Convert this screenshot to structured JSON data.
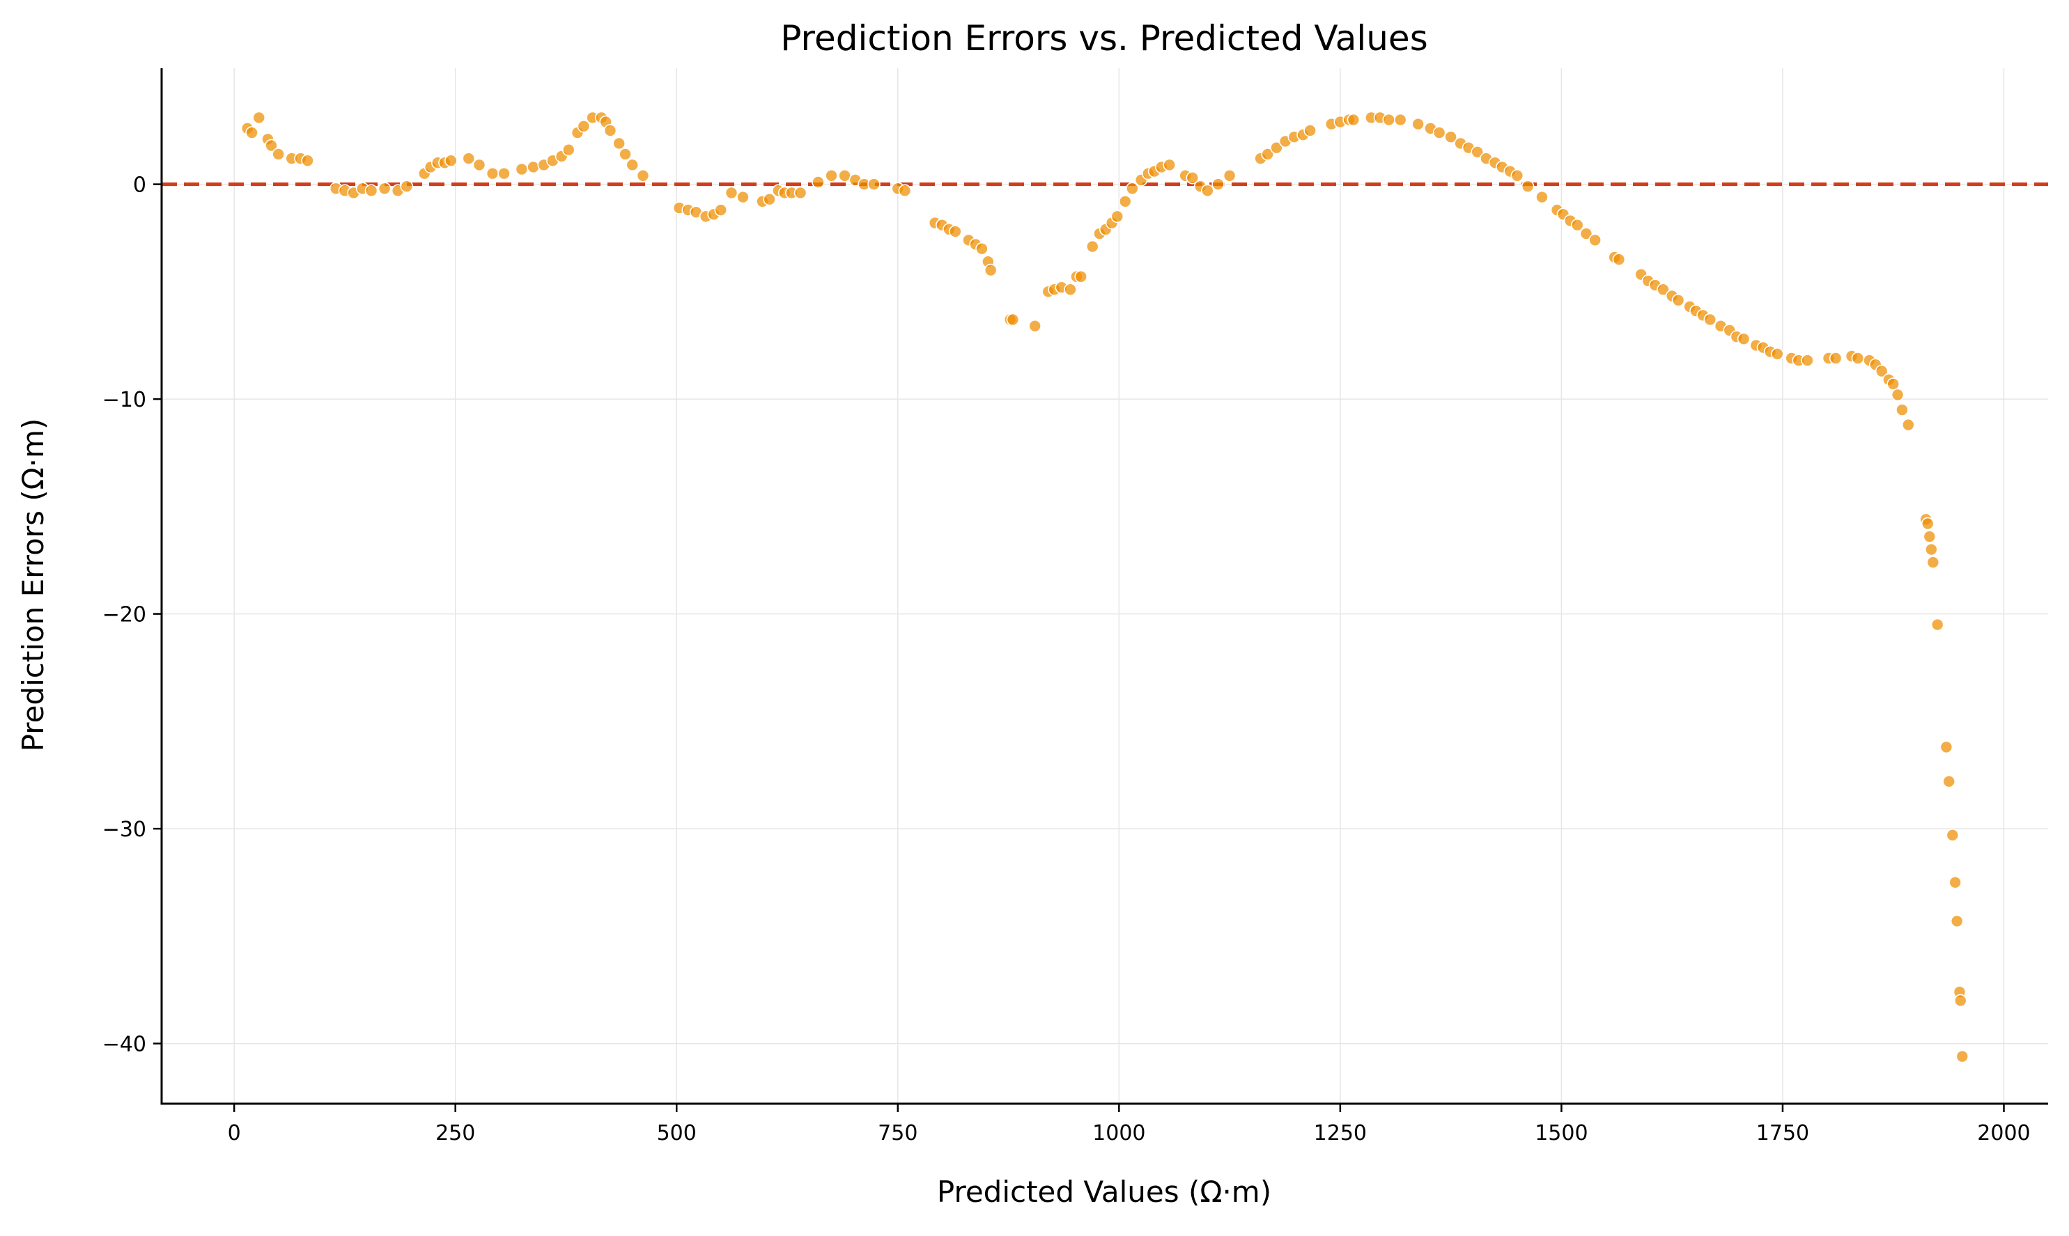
{
  "chart_data": {
    "type": "scatter",
    "title": "Prediction Errors vs. Predicted Values",
    "xlabel": "Predicted Values (Ω·m)",
    "ylabel": "Prediction Errors (Ω·m)",
    "xlim": [
      -82,
      2050
    ],
    "ylim": [
      -42.8,
      5.4
    ],
    "xticks": [
      0,
      250,
      500,
      750,
      1000,
      1250,
      1500,
      1750,
      2000
    ],
    "yticks": [
      0,
      -10,
      -20,
      -30,
      -40
    ],
    "xtick_labels": [
      "0",
      "250",
      "500",
      "750",
      "1000",
      "1250",
      "1500",
      "1750",
      "2000"
    ],
    "ytick_labels": [
      "0",
      "−10",
      "−20",
      "−30",
      "−40"
    ],
    "grid": true,
    "reference_line": {
      "y": 0,
      "style": "dashed",
      "color": "#d13d1a"
    },
    "marker_color": "#ef8e00",
    "series": [
      {
        "points": [
          [
            15,
            2.6
          ],
          [
            20,
            2.4
          ],
          [
            28,
            3.1
          ],
          [
            38,
            2.1
          ],
          [
            42,
            1.8
          ],
          [
            50,
            1.4
          ],
          [
            65,
            1.2
          ],
          [
            75,
            1.2
          ],
          [
            83,
            1.1
          ],
          [
            115,
            -0.2
          ],
          [
            125,
            -0.3
          ],
          [
            135,
            -0.4
          ],
          [
            145,
            -0.2
          ],
          [
            155,
            -0.3
          ],
          [
            170,
            -0.2
          ],
          [
            185,
            -0.3
          ],
          [
            195,
            -0.1
          ],
          [
            215,
            0.5
          ],
          [
            222,
            0.8
          ],
          [
            230,
            1.0
          ],
          [
            238,
            1.0
          ],
          [
            245,
            1.1
          ],
          [
            265,
            1.2
          ],
          [
            277,
            0.9
          ],
          [
            292,
            0.5
          ],
          [
            305,
            0.5
          ],
          [
            325,
            0.7
          ],
          [
            338,
            0.8
          ],
          [
            350,
            0.9
          ],
          [
            360,
            1.1
          ],
          [
            370,
            1.3
          ],
          [
            378,
            1.6
          ],
          [
            388,
            2.4
          ],
          [
            395,
            2.7
          ],
          [
            405,
            3.1
          ],
          [
            415,
            3.1
          ],
          [
            420,
            2.9
          ],
          [
            425,
            2.5
          ],
          [
            435,
            1.9
          ],
          [
            442,
            1.4
          ],
          [
            450,
            0.9
          ],
          [
            462,
            0.4
          ],
          [
            503,
            -1.1
          ],
          [
            513,
            -1.2
          ],
          [
            522,
            -1.3
          ],
          [
            533,
            -1.5
          ],
          [
            542,
            -1.4
          ],
          [
            550,
            -1.2
          ],
          [
            562,
            -0.4
          ],
          [
            575,
            -0.6
          ],
          [
            597,
            -0.8
          ],
          [
            605,
            -0.7
          ],
          [
            615,
            -0.3
          ],
          [
            622,
            -0.4
          ],
          [
            630,
            -0.4
          ],
          [
            640,
            -0.4
          ],
          [
            660,
            0.1
          ],
          [
            675,
            0.4
          ],
          [
            690,
            0.4
          ],
          [
            702,
            0.2
          ],
          [
            712,
            0.0
          ],
          [
            723,
            0.0
          ],
          [
            750,
            -0.2
          ],
          [
            758,
            -0.3
          ],
          [
            792,
            -1.8
          ],
          [
            800,
            -1.9
          ],
          [
            808,
            -2.1
          ],
          [
            815,
            -2.2
          ],
          [
            830,
            -2.6
          ],
          [
            838,
            -2.8
          ],
          [
            845,
            -3.0
          ],
          [
            852,
            -3.6
          ],
          [
            855,
            -4.0
          ],
          [
            877,
            -6.3
          ],
          [
            880,
            -6.3
          ],
          [
            905,
            -6.6
          ],
          [
            920,
            -5.0
          ],
          [
            927,
            -4.9
          ],
          [
            935,
            -4.8
          ],
          [
            945,
            -4.9
          ],
          [
            952,
            -4.3
          ],
          [
            957,
            -4.3
          ],
          [
            970,
            -2.9
          ],
          [
            978,
            -2.3
          ],
          [
            985,
            -2.1
          ],
          [
            992,
            -1.8
          ],
          [
            998,
            -1.5
          ],
          [
            1007,
            -0.8
          ],
          [
            1015,
            -0.2
          ],
          [
            1025,
            0.2
          ],
          [
            1033,
            0.5
          ],
          [
            1040,
            0.6
          ],
          [
            1048,
            0.8
          ],
          [
            1057,
            0.9
          ],
          [
            1075,
            0.4
          ],
          [
            1083,
            0.3
          ],
          [
            1092,
            -0.1
          ],
          [
            1100,
            -0.3
          ],
          [
            1112,
            0.0
          ],
          [
            1125,
            0.4
          ],
          [
            1160,
            1.2
          ],
          [
            1168,
            1.4
          ],
          [
            1178,
            1.7
          ],
          [
            1188,
            2.0
          ],
          [
            1198,
            2.2
          ],
          [
            1208,
            2.3
          ],
          [
            1216,
            2.5
          ],
          [
            1240,
            2.8
          ],
          [
            1250,
            2.9
          ],
          [
            1260,
            3.0
          ],
          [
            1265,
            3.0
          ],
          [
            1285,
            3.1
          ],
          [
            1295,
            3.1
          ],
          [
            1305,
            3.0
          ],
          [
            1318,
            3.0
          ],
          [
            1338,
            2.8
          ],
          [
            1352,
            2.6
          ],
          [
            1362,
            2.4
          ],
          [
            1375,
            2.2
          ],
          [
            1386,
            1.9
          ],
          [
            1395,
            1.7
          ],
          [
            1405,
            1.5
          ],
          [
            1415,
            1.2
          ],
          [
            1425,
            1.0
          ],
          [
            1433,
            0.8
          ],
          [
            1442,
            0.6
          ],
          [
            1450,
            0.4
          ],
          [
            1462,
            -0.1
          ],
          [
            1478,
            -0.6
          ],
          [
            1495,
            -1.2
          ],
          [
            1502,
            -1.4
          ],
          [
            1510,
            -1.7
          ],
          [
            1518,
            -1.9
          ],
          [
            1528,
            -2.3
          ],
          [
            1538,
            -2.6
          ],
          [
            1560,
            -3.4
          ],
          [
            1565,
            -3.5
          ],
          [
            1590,
            -4.2
          ],
          [
            1598,
            -4.5
          ],
          [
            1606,
            -4.7
          ],
          [
            1615,
            -4.9
          ],
          [
            1625,
            -5.2
          ],
          [
            1632,
            -5.4
          ],
          [
            1645,
            -5.7
          ],
          [
            1652,
            -5.9
          ],
          [
            1660,
            -6.1
          ],
          [
            1668,
            -6.3
          ],
          [
            1680,
            -6.6
          ],
          [
            1690,
            -6.8
          ],
          [
            1698,
            -7.1
          ],
          [
            1706,
            -7.2
          ],
          [
            1720,
            -7.5
          ],
          [
            1728,
            -7.6
          ],
          [
            1736,
            -7.8
          ],
          [
            1744,
            -7.9
          ],
          [
            1760,
            -8.1
          ],
          [
            1768,
            -8.2
          ],
          [
            1778,
            -8.2
          ],
          [
            1802,
            -8.1
          ],
          [
            1810,
            -8.1
          ],
          [
            1828,
            -8.0
          ],
          [
            1835,
            -8.1
          ],
          [
            1848,
            -8.2
          ],
          [
            1855,
            -8.4
          ],
          [
            1862,
            -8.7
          ],
          [
            1870,
            -9.1
          ],
          [
            1875,
            -9.3
          ],
          [
            1880,
            -9.8
          ],
          [
            1885,
            -10.5
          ],
          [
            1892,
            -11.2
          ],
          [
            1912,
            -15.6
          ],
          [
            1914,
            -15.8
          ],
          [
            1916,
            -16.4
          ],
          [
            1918,
            -17.0
          ],
          [
            1920,
            -17.6
          ],
          [
            1925,
            -20.5
          ],
          [
            1935,
            -26.2
          ],
          [
            1938,
            -27.8
          ],
          [
            1942,
            -30.3
          ],
          [
            1945,
            -32.5
          ],
          [
            1947,
            -34.3
          ],
          [
            1950,
            -37.6
          ],
          [
            1951,
            -38.0
          ],
          [
            1953,
            -40.6
          ]
        ]
      }
    ]
  }
}
